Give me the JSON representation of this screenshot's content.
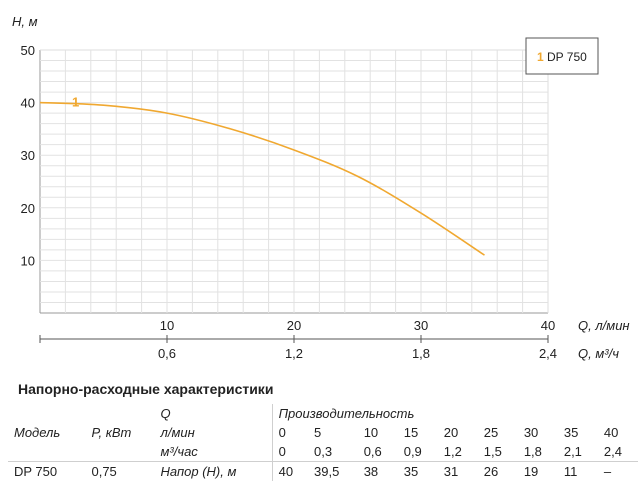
{
  "chart_data": {
    "type": "line",
    "ylabel": "H, м",
    "ylim": [
      0,
      50
    ],
    "yticks": [
      10,
      20,
      30,
      40,
      50
    ],
    "xlabel": "Q, л/мин",
    "xlim": [
      0,
      40
    ],
    "xticks": [
      10,
      20,
      30,
      40
    ],
    "x2label": "Q, м³/ч",
    "x2ticks": [
      "0,6",
      "1,2",
      "1,8",
      "2,4"
    ],
    "grid": true,
    "legend": {
      "position": "top-right",
      "marker": "1",
      "label": "DP 750"
    },
    "series": [
      {
        "name": "DP 750",
        "marker_label": "1",
        "color": "#f0a830",
        "x": [
          0,
          5,
          10,
          15,
          20,
          25,
          30,
          35
        ],
        "y": [
          40,
          39.5,
          38,
          35,
          31,
          26,
          19,
          11
        ]
      }
    ]
  },
  "table": {
    "title": "Напорно-расходные характеристики",
    "col_model": "Модель",
    "col_power": "P, кВт",
    "col_q": "Q",
    "col_perf": "Производительность",
    "unit_lmin": "л/мин",
    "unit_m3h": "м³/час",
    "lmin": [
      "0",
      "5",
      "10",
      "15",
      "20",
      "25",
      "30",
      "35",
      "40"
    ],
    "m3h": [
      "0",
      "0,3",
      "0,6",
      "0,9",
      "1,2",
      "1,5",
      "1,8",
      "2,1",
      "2,4"
    ],
    "rows": [
      {
        "model": "DP 750",
        "power": "0,75",
        "label": "Напор (Н), м",
        "values": [
          "40",
          "39,5",
          "38",
          "35",
          "31",
          "26",
          "19",
          "11",
          "–"
        ]
      }
    ]
  }
}
